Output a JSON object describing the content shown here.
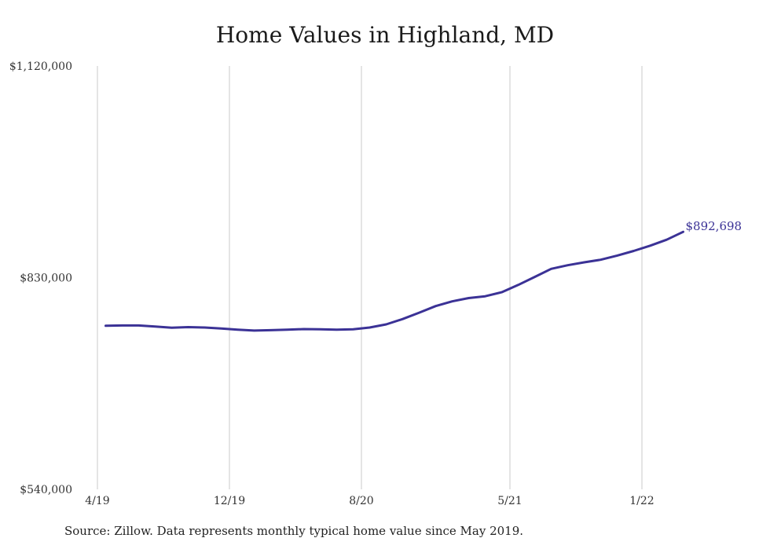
{
  "chart_data": {
    "type": "line",
    "title": "Home Values in Highland, MD",
    "source": "Source: Zillow. Data represents monthly typical home value since May 2019.",
    "xlabel": "",
    "ylabel": "",
    "ylim": [
      540000,
      1120000
    ],
    "y_ticks": [
      {
        "value": 540000,
        "label": "$540,000"
      },
      {
        "value": 830000,
        "label": "$830,000"
      },
      {
        "value": 1120000,
        "label": "$1,120,000"
      }
    ],
    "x_ticks": [
      {
        "x": 0,
        "label": "4/19"
      },
      {
        "x": 8,
        "label": "12/19"
      },
      {
        "x": 16,
        "label": "8/20"
      },
      {
        "x": 25,
        "label": "5/21"
      },
      {
        "x": 33,
        "label": "1/22"
      }
    ],
    "grid": "vertical",
    "line_color": "#3b3296",
    "end_label": "$892,698",
    "series": [
      {
        "values": [
          [
            0.5,
            764000
          ],
          [
            1.5,
            764500
          ],
          [
            2.5,
            764500
          ],
          [
            3.5,
            763000
          ],
          [
            4.5,
            761500
          ],
          [
            5.5,
            762200
          ],
          [
            6.5,
            761700
          ],
          [
            7.5,
            760300
          ],
          [
            8.5,
            758700
          ],
          [
            9.5,
            757500
          ],
          [
            10.5,
            758000
          ],
          [
            11.5,
            758700
          ],
          [
            12.5,
            759500
          ],
          [
            13.5,
            759300
          ],
          [
            14.5,
            758700
          ],
          [
            15.5,
            759300
          ],
          [
            16.5,
            761700
          ],
          [
            17.5,
            766000
          ],
          [
            18.5,
            773300
          ],
          [
            19.5,
            782000
          ],
          [
            20.5,
            791000
          ],
          [
            21.5,
            797500
          ],
          [
            22.5,
            802000
          ],
          [
            23.5,
            804500
          ],
          [
            24.5,
            810000
          ],
          [
            25.5,
            820000
          ],
          [
            26.5,
            831000
          ],
          [
            27.5,
            842000
          ],
          [
            28.5,
            847000
          ],
          [
            29.5,
            851000
          ],
          [
            30.5,
            854500
          ],
          [
            31.5,
            860200
          ],
          [
            32.5,
            866600
          ],
          [
            33.5,
            873800
          ],
          [
            34.5,
            882000
          ],
          [
            35.5,
            892698
          ]
        ]
      }
    ]
  }
}
